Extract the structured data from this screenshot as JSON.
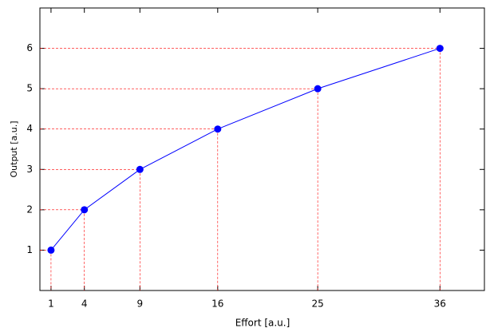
{
  "chart_data": {
    "type": "line",
    "x": [
      1,
      4,
      9,
      16,
      25,
      36
    ],
    "values": [
      1,
      2,
      3,
      4,
      5,
      6
    ],
    "color": "#0000ff",
    "xlabel": "Effort [a.u.]",
    "ylabel": "Output [a.u.]",
    "xlim": [
      0,
      40
    ],
    "ylim": [
      0,
      7
    ],
    "xticks": [
      1,
      4,
      9,
      16,
      25,
      36
    ],
    "yticks": [
      1,
      2,
      3,
      4,
      5,
      6
    ],
    "droplines": true,
    "dropline_color": "#ff0000"
  }
}
